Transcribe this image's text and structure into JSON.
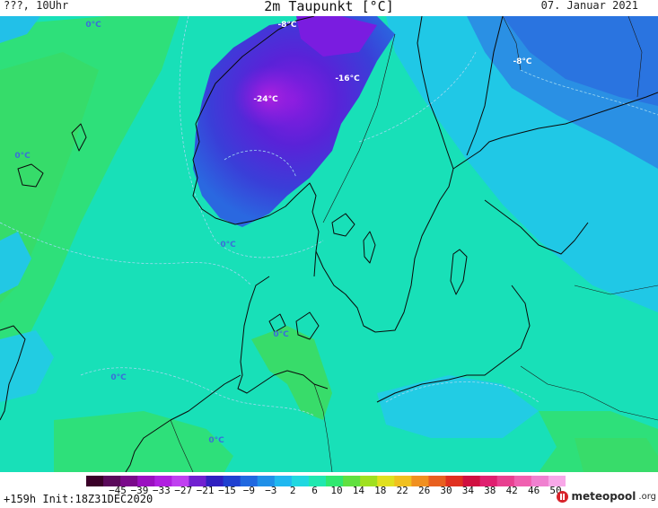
{
  "header": {
    "left_text": "???, 10Uhr",
    "title": "2m Taupunkt [°C]",
    "date": "07. Januar 2021"
  },
  "map": {
    "contour_labels": [
      {
        "text": "-8°C",
        "color": "#ffffff"
      },
      {
        "text": "-16°C",
        "color": "#ffffff"
      },
      {
        "text": "-24°C",
        "color": "#ffffff"
      },
      {
        "text": "-8°C",
        "color": "#ffffff"
      },
      {
        "text": "0°C",
        "color": "#3a6fd8"
      },
      {
        "text": "0°C",
        "color": "#3a6fd8"
      },
      {
        "text": "0°C",
        "color": "#3a6fd8"
      },
      {
        "text": "0°C",
        "color": "#3a6fd8"
      },
      {
        "text": "0°C",
        "color": "#3a6fd8"
      },
      {
        "text": "0°C",
        "color": "#3a6fd8"
      }
    ]
  },
  "colorbar": {
    "ticks": [
      "−45",
      "−39",
      "−33",
      "−27",
      "−21",
      "−15",
      "−9",
      "−3",
      "2",
      "6",
      "10",
      "14",
      "18",
      "22",
      "26",
      "30",
      "34",
      "38",
      "42",
      "46",
      "50"
    ],
    "colors": [
      "#3a0028",
      "#5a0a5a",
      "#7a0a8a",
      "#9a10c0",
      "#b020e0",
      "#c040f0",
      "#7020d0",
      "#3020c0",
      "#2040d0",
      "#2068e0",
      "#2090e8",
      "#20b8f0",
      "#20d8e0",
      "#20e8b0",
      "#30e870",
      "#60e040",
      "#a0e020",
      "#e0e020",
      "#f0c020",
      "#f09020",
      "#e86020",
      "#e03020",
      "#d01040",
      "#e02070",
      "#e84090",
      "#f060b0",
      "#f080d0",
      "#f8a8e8"
    ]
  },
  "footer": {
    "forecast": "+159h Init:18Z31DEC2020"
  },
  "logo": {
    "name": "meteopool",
    "tld": ".org"
  }
}
